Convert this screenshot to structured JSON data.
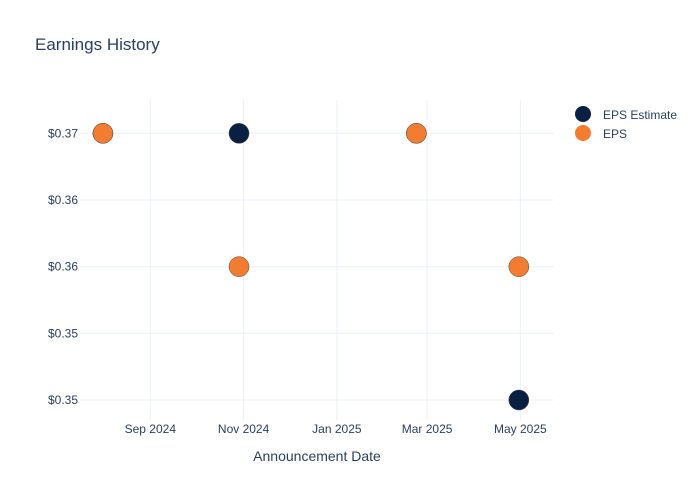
{
  "chart_data": {
    "type": "scatter",
    "title": "Earnings History",
    "xlabel": "Announcement Date",
    "ylabel": "",
    "x_tick_labels": [
      "Sep 2024",
      "Nov 2024",
      "Jan 2025",
      "Mar 2025",
      "May 2025"
    ],
    "x_tick_dates": [
      "2024-09-01",
      "2024-11-01",
      "2025-01-01",
      "2025-03-01",
      "2025-05-01"
    ],
    "xlim": [
      "2024-07-17",
      "2025-05-23"
    ],
    "y_tick_labels": [
      "$0.35",
      "$0.35",
      "$0.36",
      "$0.36",
      "$0.37"
    ],
    "y_tick_values": [
      0.345,
      0.35,
      0.355,
      0.36,
      0.365
    ],
    "ylim": [
      0.3435,
      0.3675
    ],
    "grid": true,
    "legend_position": "top-right",
    "series": [
      {
        "name": "EPS Estimate",
        "color": "#0b1f42",
        "points": [
          {
            "x": "2024-08-01",
            "y": 0.365
          },
          {
            "x": "2024-10-29",
            "y": 0.365
          },
          {
            "x": "2025-02-22",
            "y": 0.365
          },
          {
            "x": "2025-04-30",
            "y": 0.345
          }
        ]
      },
      {
        "name": "EPS",
        "color": "#f47c30",
        "points": [
          {
            "x": "2024-08-01",
            "y": 0.365
          },
          {
            "x": "2024-10-29",
            "y": 0.355
          },
          {
            "x": "2025-02-22",
            "y": 0.365
          },
          {
            "x": "2025-04-30",
            "y": 0.355
          }
        ]
      }
    ]
  }
}
